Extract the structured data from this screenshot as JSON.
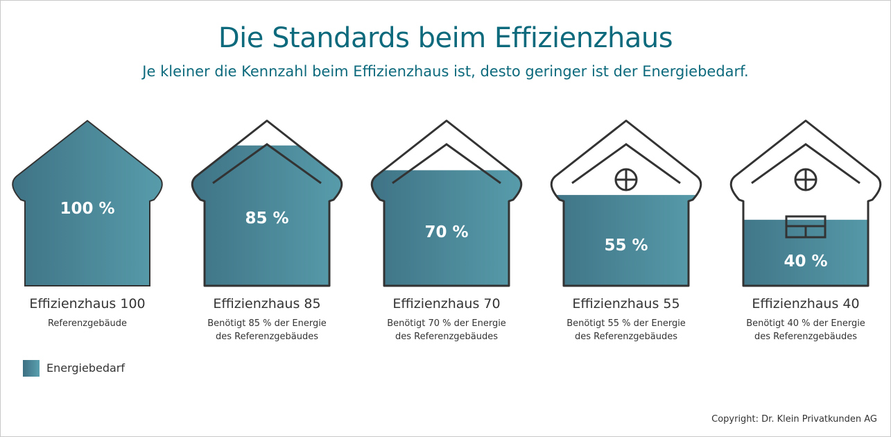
{
  "title": "Die Standards beim Effizienzhaus",
  "subtitle": "Je kleiner die Kennzahl beim Effizienzhaus ist, desto geringer ist der Energiebedarf.",
  "colors": {
    "accent": "#0d6a7c",
    "fill_dark": "#3c6f82",
    "fill_light": "#5aa0ae",
    "outline": "#333333"
  },
  "chart_data": {
    "type": "bar",
    "categories": [
      "Effizienzhaus 100",
      "Effizienzhaus 85",
      "Effizienzhaus 70",
      "Effizienzhaus 55",
      "Effizienzhaus 40"
    ],
    "values": [
      100,
      85,
      70,
      55,
      40
    ],
    "value_labels": [
      "100 %",
      "85 %",
      "70 %",
      "55 %",
      "40 %"
    ],
    "descriptions": [
      [
        "Referenzgebäude"
      ],
      [
        "Benötigt 85 % der Energie",
        "des Referenzgebäudes"
      ],
      [
        "Benötigt 70 % der Energie",
        "des Referenzgebäudes"
      ],
      [
        "Benötigt 55 % der Energie",
        "des Referenzgebäudes"
      ],
      [
        "Benötigt 40 % der Energie",
        "des Referenzgebäudes"
      ]
    ],
    "legend": "Energiebedarf"
  },
  "copyright": "Copyright: Dr. Klein Privatkunden AG"
}
